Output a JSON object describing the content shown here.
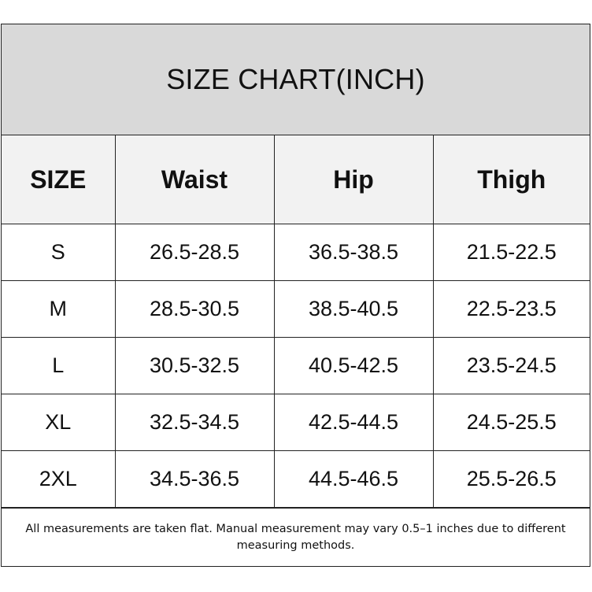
{
  "title": "SIZE CHART(INCH)",
  "table": {
    "headers": [
      "SIZE",
      "Waist",
      "Hip",
      "Thigh"
    ],
    "rows": [
      [
        "S",
        "26.5-28.5",
        "36.5-38.5",
        "21.5-22.5"
      ],
      [
        "M",
        "28.5-30.5",
        "38.5-40.5",
        "22.5-23.5"
      ],
      [
        "L",
        "30.5-32.5",
        "40.5-42.5",
        "23.5-24.5"
      ],
      [
        "XL",
        "32.5-34.5",
        "42.5-44.5",
        "24.5-25.5"
      ],
      [
        "2XL",
        "34.5-36.5",
        "44.5-46.5",
        "25.5-26.5"
      ]
    ]
  },
  "note": "All measurements are taken flat. Manual measurement may vary 0.5–1 inches due to different measuring methods.",
  "colors": {
    "title_band": "#d9d9d9",
    "header_row": "#f2f2f2",
    "border": "#222222",
    "text": "#111111"
  }
}
